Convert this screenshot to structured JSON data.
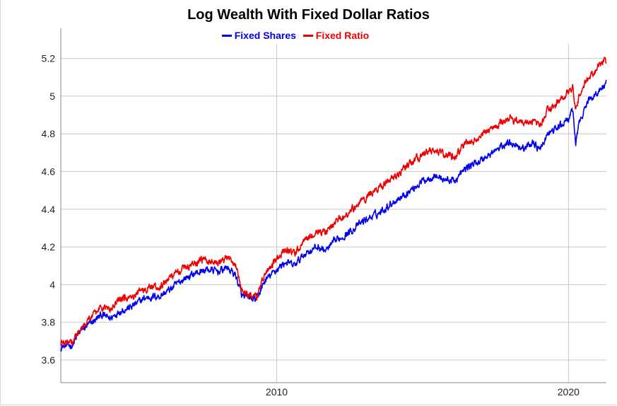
{
  "chart_data": {
    "type": "line",
    "title": "Log Wealth With Fixed Dollar Ratios",
    "xlabel": "",
    "ylabel": "",
    "xlim": [
      2002.6,
      2021.3
    ],
    "ylim": [
      3.48,
      5.36
    ],
    "x_ticks": [
      {
        "value": 2010,
        "label": "2010"
      },
      {
        "value": 2020,
        "label": "2020"
      }
    ],
    "y_ticks": [
      {
        "value": 3.6,
        "label": "3.6"
      },
      {
        "value": 3.8,
        "label": "3.8"
      },
      {
        "value": 4.0,
        "label": "4"
      },
      {
        "value": 4.2,
        "label": "4.2"
      },
      {
        "value": 4.4,
        "label": "4.4"
      },
      {
        "value": 4.6,
        "label": "4.6"
      },
      {
        "value": 4.8,
        "label": "4.8"
      },
      {
        "value": 5.0,
        "label": "5"
      },
      {
        "value": 5.2,
        "label": "5.2"
      }
    ],
    "grid": true,
    "legend_position": "top-center",
    "series": [
      {
        "name": "Fixed Shares",
        "color": "#0000ee",
        "x": [
          2002.6,
          2003.0,
          2003.3,
          2003.6,
          2004.0,
          2004.3,
          2004.6,
          2005.0,
          2005.5,
          2006.0,
          2006.4,
          2006.8,
          2007.2,
          2007.6,
          2008.0,
          2008.3,
          2008.6,
          2008.8,
          2009.0,
          2009.3,
          2009.6,
          2010.0,
          2010.3,
          2010.6,
          2011.0,
          2011.4,
          2011.7,
          2012.0,
          2012.5,
          2013.0,
          2013.5,
          2014.0,
          2014.5,
          2015.0,
          2015.4,
          2015.7,
          2016.1,
          2016.5,
          2017.0,
          2017.5,
          2018.0,
          2018.5,
          2018.8,
          2019.0,
          2019.3,
          2019.7,
          2020.0,
          2020.15,
          2020.25,
          2020.4,
          2020.7,
          2021.0,
          2021.3
        ],
        "values": [
          3.67,
          3.68,
          3.76,
          3.79,
          3.84,
          3.82,
          3.86,
          3.88,
          3.93,
          3.94,
          3.98,
          4.03,
          4.06,
          4.08,
          4.07,
          4.09,
          4.05,
          3.94,
          3.93,
          3.92,
          4.02,
          4.08,
          4.12,
          4.1,
          4.17,
          4.2,
          4.18,
          4.23,
          4.28,
          4.34,
          4.38,
          4.44,
          4.49,
          4.55,
          4.58,
          4.56,
          4.55,
          4.62,
          4.66,
          4.71,
          4.76,
          4.72,
          4.76,
          4.71,
          4.8,
          4.84,
          4.88,
          4.92,
          4.75,
          4.88,
          4.98,
          5.02,
          5.07
        ]
      },
      {
        "name": "Fixed Ratio",
        "color": "#ee0000",
        "x": [
          2002.6,
          2003.0,
          2003.3,
          2003.6,
          2004.0,
          2004.3,
          2004.6,
          2005.0,
          2005.5,
          2006.0,
          2006.4,
          2006.8,
          2007.2,
          2007.6,
          2008.0,
          2008.3,
          2008.6,
          2008.8,
          2009.0,
          2009.3,
          2009.6,
          2010.0,
          2010.3,
          2010.6,
          2011.0,
          2011.4,
          2011.7,
          2012.0,
          2012.5,
          2013.0,
          2013.5,
          2014.0,
          2014.5,
          2015.0,
          2015.4,
          2015.7,
          2016.1,
          2016.5,
          2017.0,
          2017.5,
          2018.0,
          2018.5,
          2018.8,
          2019.0,
          2019.3,
          2019.7,
          2020.0,
          2020.15,
          2020.25,
          2020.4,
          2020.7,
          2021.0,
          2021.3
        ],
        "values": [
          3.69,
          3.7,
          3.78,
          3.82,
          3.88,
          3.87,
          3.92,
          3.94,
          3.98,
          3.99,
          4.04,
          4.09,
          4.12,
          4.13,
          4.12,
          4.14,
          4.1,
          3.97,
          3.94,
          3.93,
          4.06,
          4.13,
          4.18,
          4.16,
          4.24,
          4.28,
          4.27,
          4.33,
          4.39,
          4.46,
          4.51,
          4.57,
          4.63,
          4.69,
          4.71,
          4.69,
          4.68,
          4.75,
          4.79,
          4.84,
          4.88,
          4.86,
          4.87,
          4.84,
          4.93,
          4.97,
          5.02,
          5.05,
          4.92,
          5.02,
          5.1,
          5.15,
          5.19
        ]
      }
    ]
  }
}
